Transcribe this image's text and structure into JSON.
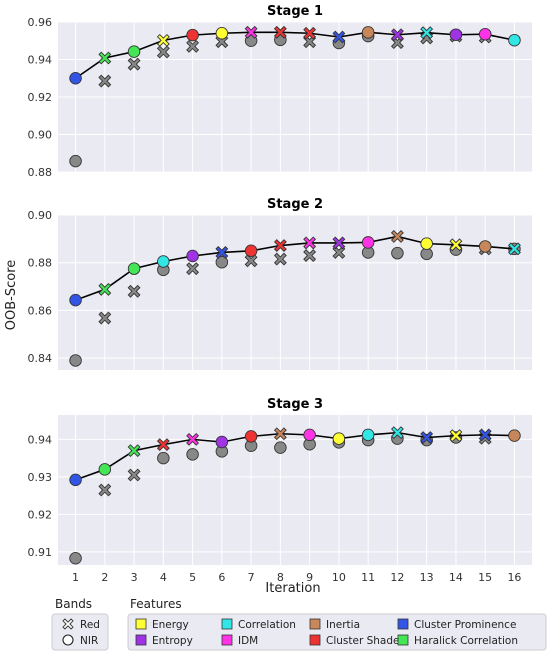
{
  "features": {
    "Energy": "#ffff33",
    "Entropy": "#a033e6",
    "Correlation": "#33e6e6",
    "IDM": "#ff33e6",
    "Inertia": "#c8875a",
    "Cluster Shade": "#ee3333",
    "Cluster Prominence": "#3355e6",
    "Haralick Correlation": "#44e655"
  },
  "legend": {
    "bands_title": "Bands",
    "bands": [
      {
        "label": "Red",
        "marker": "x"
      },
      {
        "label": "NIR",
        "marker": "o"
      }
    ],
    "features_title": "Features",
    "features": [
      "Energy",
      "Entropy",
      "Correlation",
      "IDM",
      "Inertia",
      "Cluster Shade",
      "Cluster Prominence",
      "Haralick Correlation"
    ]
  },
  "chart_data": [
    {
      "type": "scatter",
      "title": "Stage 1",
      "xlabel": "",
      "ylabel": "",
      "xlim": [
        0.4,
        16.6
      ],
      "ylim": [
        0.88,
        0.96
      ],
      "yticks": [
        "0.88",
        "0.90",
        "0.92",
        "0.94",
        "0.96"
      ],
      "xticks": [],
      "best": [
        {
          "x": 1,
          "y": 0.93,
          "band": "NIR",
          "feature": "Cluster Prominence"
        },
        {
          "x": 2,
          "y": 0.9408,
          "band": "Red",
          "feature": "Haralick Correlation"
        },
        {
          "x": 3,
          "y": 0.9442,
          "band": "NIR",
          "feature": "Haralick Correlation"
        },
        {
          "x": 4,
          "y": 0.9502,
          "band": "Red",
          "feature": "Energy"
        },
        {
          "x": 5,
          "y": 0.953,
          "band": "NIR",
          "feature": "Cluster Shade"
        },
        {
          "x": 6,
          "y": 0.954,
          "band": "NIR",
          "feature": "Energy"
        },
        {
          "x": 7,
          "y": 0.9545,
          "band": "Red",
          "feature": "IDM"
        },
        {
          "x": 8,
          "y": 0.9545,
          "band": "Red",
          "feature": "Cluster Shade"
        },
        {
          "x": 9,
          "y": 0.954,
          "band": "Red",
          "feature": "Cluster Shade"
        },
        {
          "x": 10,
          "y": 0.952,
          "band": "Red",
          "feature": "Cluster Prominence"
        },
        {
          "x": 11,
          "y": 0.9545,
          "band": "NIR",
          "feature": "Inertia"
        },
        {
          "x": 12,
          "y": 0.9532,
          "band": "Red",
          "feature": "Entropy"
        },
        {
          "x": 13,
          "y": 0.9543,
          "band": "Red",
          "feature": "Correlation"
        },
        {
          "x": 14,
          "y": 0.9532,
          "band": "NIR",
          "feature": "Entropy"
        },
        {
          "x": 15,
          "y": 0.9535,
          "band": "NIR",
          "feature": "IDM"
        },
        {
          "x": 16,
          "y": 0.9503,
          "band": "NIR",
          "feature": "Correlation"
        }
      ],
      "others": [
        {
          "x": 1,
          "y": 0.8858,
          "band": "NIR"
        },
        {
          "x": 2,
          "y": 0.9285,
          "band": "Red"
        },
        {
          "x": 3,
          "y": 0.9375,
          "band": "Red"
        },
        {
          "x": 4,
          "y": 0.944,
          "band": "Red"
        },
        {
          "x": 5,
          "y": 0.947,
          "band": "Red"
        },
        {
          "x": 6,
          "y": 0.9495,
          "band": "Red"
        },
        {
          "x": 7,
          "y": 0.95,
          "band": "NIR"
        },
        {
          "x": 8,
          "y": 0.9505,
          "band": "NIR"
        },
        {
          "x": 9,
          "y": 0.9495,
          "band": "Red"
        },
        {
          "x": 10,
          "y": 0.9488,
          "band": "NIR"
        },
        {
          "x": 11,
          "y": 0.9525,
          "band": "NIR"
        },
        {
          "x": 12,
          "y": 0.949,
          "band": "Red"
        },
        {
          "x": 13,
          "y": 0.9515,
          "band": "Red"
        },
        {
          "x": 14,
          "y": 0.9525,
          "band": "Red"
        },
        {
          "x": 15,
          "y": 0.952,
          "band": "Red"
        }
      ]
    },
    {
      "type": "scatter",
      "title": "Stage 2",
      "xlabel": "",
      "ylabel": "OOB-Score",
      "xlim": [
        0.4,
        16.6
      ],
      "ylim": [
        0.835,
        0.9
      ],
      "yticks": [
        "0.84",
        "0.86",
        "0.88",
        "0.90"
      ],
      "xticks": [],
      "best": [
        {
          "x": 1,
          "y": 0.8643,
          "band": "NIR",
          "feature": "Cluster Prominence"
        },
        {
          "x": 2,
          "y": 0.8688,
          "band": "Red",
          "feature": "Haralick Correlation"
        },
        {
          "x": 3,
          "y": 0.8775,
          "band": "NIR",
          "feature": "Haralick Correlation"
        },
        {
          "x": 4,
          "y": 0.8805,
          "band": "NIR",
          "feature": "Correlation"
        },
        {
          "x": 5,
          "y": 0.8828,
          "band": "NIR",
          "feature": "Entropy"
        },
        {
          "x": 6,
          "y": 0.8843,
          "band": "Red",
          "feature": "Cluster Prominence"
        },
        {
          "x": 7,
          "y": 0.885,
          "band": "NIR",
          "feature": "Cluster Shade"
        },
        {
          "x": 8,
          "y": 0.8872,
          "band": "Red",
          "feature": "Cluster Shade"
        },
        {
          "x": 9,
          "y": 0.8883,
          "band": "Red",
          "feature": "IDM"
        },
        {
          "x": 10,
          "y": 0.8883,
          "band": "Red",
          "feature": "Entropy"
        },
        {
          "x": 11,
          "y": 0.8885,
          "band": "NIR",
          "feature": "IDM"
        },
        {
          "x": 12,
          "y": 0.891,
          "band": "Red",
          "feature": "Inertia"
        },
        {
          "x": 13,
          "y": 0.888,
          "band": "NIR",
          "feature": "Energy"
        },
        {
          "x": 14,
          "y": 0.8875,
          "band": "Red",
          "feature": "Energy"
        },
        {
          "x": 15,
          "y": 0.8868,
          "band": "NIR",
          "feature": "Inertia"
        },
        {
          "x": 16,
          "y": 0.8858,
          "band": "Red",
          "feature": "Correlation"
        }
      ],
      "others": [
        {
          "x": 1,
          "y": 0.839,
          "band": "NIR"
        },
        {
          "x": 2,
          "y": 0.8568,
          "band": "Red"
        },
        {
          "x": 3,
          "y": 0.868,
          "band": "Red"
        },
        {
          "x": 4,
          "y": 0.877,
          "band": "NIR"
        },
        {
          "x": 5,
          "y": 0.8775,
          "band": "Red"
        },
        {
          "x": 6,
          "y": 0.8802,
          "band": "NIR"
        },
        {
          "x": 7,
          "y": 0.8808,
          "band": "Red"
        },
        {
          "x": 8,
          "y": 0.8815,
          "band": "Red"
        },
        {
          "x": 9,
          "y": 0.883,
          "band": "Red"
        },
        {
          "x": 10,
          "y": 0.8843,
          "band": "Red"
        },
        {
          "x": 11,
          "y": 0.8843,
          "band": "NIR"
        },
        {
          "x": 12,
          "y": 0.884,
          "band": "NIR"
        },
        {
          "x": 13,
          "y": 0.8837,
          "band": "NIR"
        },
        {
          "x": 14,
          "y": 0.8855,
          "band": "NIR"
        },
        {
          "x": 15,
          "y": 0.8858,
          "band": "Red"
        },
        {
          "x": 16,
          "y": 0.8858,
          "band": "NIR"
        }
      ]
    },
    {
      "type": "scatter",
      "title": "Stage 3",
      "xlabel": "Iteration",
      "ylabel": "",
      "xlim": [
        0.4,
        16.6
      ],
      "ylim": [
        0.9065,
        0.9465
      ],
      "yticks": [
        "0.91",
        "0.92",
        "0.93",
        "0.94"
      ],
      "xticks": [
        "1",
        "2",
        "3",
        "4",
        "5",
        "6",
        "7",
        "8",
        "9",
        "10",
        "11",
        "12",
        "13",
        "14",
        "15",
        "16"
      ],
      "best": [
        {
          "x": 1,
          "y": 0.9292,
          "band": "NIR",
          "feature": "Cluster Prominence"
        },
        {
          "x": 2,
          "y": 0.932,
          "band": "NIR",
          "feature": "Haralick Correlation"
        },
        {
          "x": 3,
          "y": 0.937,
          "band": "Red",
          "feature": "Haralick Correlation"
        },
        {
          "x": 4,
          "y": 0.9386,
          "band": "Red",
          "feature": "Cluster Shade"
        },
        {
          "x": 5,
          "y": 0.94,
          "band": "Red",
          "feature": "IDM"
        },
        {
          "x": 6,
          "y": 0.9393,
          "band": "NIR",
          "feature": "Entropy"
        },
        {
          "x": 7,
          "y": 0.9408,
          "band": "NIR",
          "feature": "Cluster Shade"
        },
        {
          "x": 8,
          "y": 0.9415,
          "band": "Red",
          "feature": "Inertia"
        },
        {
          "x": 9,
          "y": 0.9412,
          "band": "NIR",
          "feature": "IDM"
        },
        {
          "x": 10,
          "y": 0.9402,
          "band": "NIR",
          "feature": "Energy"
        },
        {
          "x": 11,
          "y": 0.9412,
          "band": "NIR",
          "feature": "Correlation"
        },
        {
          "x": 12,
          "y": 0.9418,
          "band": "Red",
          "feature": "Correlation"
        },
        {
          "x": 13,
          "y": 0.9405,
          "band": "Red",
          "feature": "Cluster Prominence"
        },
        {
          "x": 14,
          "y": 0.941,
          "band": "Red",
          "feature": "Energy"
        },
        {
          "x": 15,
          "y": 0.9412,
          "band": "Red",
          "feature": "Cluster Prominence"
        },
        {
          "x": 16,
          "y": 0.941,
          "band": "NIR",
          "feature": "Inertia"
        }
      ],
      "others": [
        {
          "x": 1,
          "y": 0.9083,
          "band": "NIR"
        },
        {
          "x": 2,
          "y": 0.9265,
          "band": "Red"
        },
        {
          "x": 3,
          "y": 0.9305,
          "band": "Red"
        },
        {
          "x": 4,
          "y": 0.935,
          "band": "NIR"
        },
        {
          "x": 5,
          "y": 0.936,
          "band": "NIR"
        },
        {
          "x": 6,
          "y": 0.9368,
          "band": "NIR"
        },
        {
          "x": 7,
          "y": 0.9383,
          "band": "NIR"
        },
        {
          "x": 8,
          "y": 0.9378,
          "band": "NIR"
        },
        {
          "x": 9,
          "y": 0.9387,
          "band": "NIR"
        },
        {
          "x": 10,
          "y": 0.9392,
          "band": "NIR"
        },
        {
          "x": 11,
          "y": 0.9398,
          "band": "NIR"
        },
        {
          "x": 12,
          "y": 0.9402,
          "band": "NIR"
        },
        {
          "x": 13,
          "y": 0.9398,
          "band": "NIR"
        },
        {
          "x": 14,
          "y": 0.9405,
          "band": "NIR"
        },
        {
          "x": 15,
          "y": 0.9403,
          "band": "Red"
        }
      ]
    }
  ]
}
